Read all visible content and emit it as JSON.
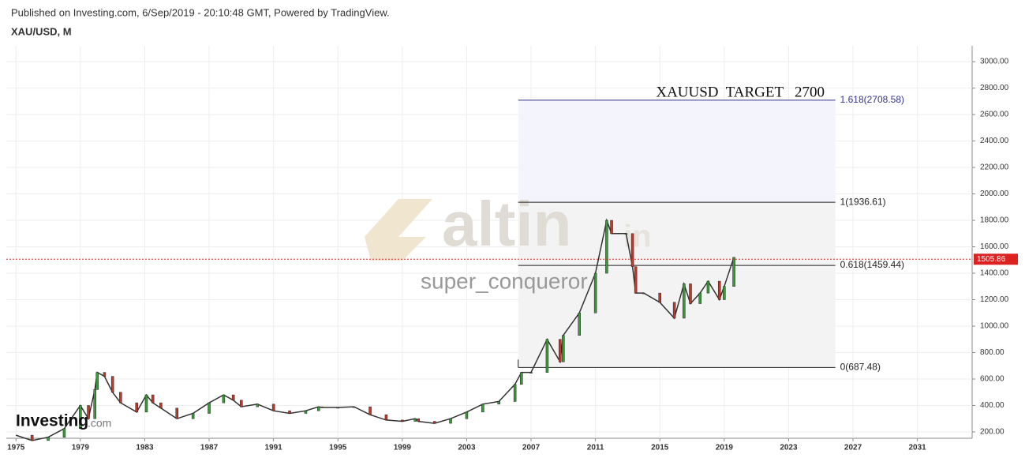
{
  "chart_data": {
    "type": "line",
    "header": "Published on Investing.com, 6/Sep/2019 - 20:10:48 GMT, Powered by TradingView.",
    "title": "XAU/USD, M",
    "annotation": "XAUUSD  TARGET   2700",
    "watermark": "altin",
    "watermark_suffix": "in",
    "watermark_user": "super_conqueror",
    "logo": "Investing",
    "logo_suffix": ".com",
    "color": "#333333",
    "x": [
      1975,
      1976,
      1977,
      1978,
      1979,
      1979.5,
      1979.9,
      1980.05,
      1980.5,
      1981,
      1981.5,
      1982.5,
      1983.1,
      1983.5,
      1984,
      1985,
      1986,
      1987,
      1987.9,
      1988.5,
      1989,
      1990,
      1991,
      1992,
      1993,
      1993.8,
      1994,
      1995,
      1996,
      1997,
      1998,
      1999,
      1999.8,
      2000,
      2001,
      2002,
      2003,
      2004,
      2005,
      2006,
      2006.4,
      2007,
      2008,
      2008.8,
      2009,
      2010,
      2011,
      2011.7,
      2012,
      2012.9,
      2013.3,
      2013.5,
      2014,
      2015,
      2015.9,
      2016.5,
      2016.9,
      2017.5,
      2018,
      2018.7,
      2019,
      2019.6
    ],
    "values": [
      175,
      135,
      160,
      225,
      400,
      300,
      520,
      650,
      620,
      500,
      420,
      350,
      480,
      420,
      380,
      300,
      340,
      420,
      480,
      440,
      390,
      410,
      360,
      340,
      360,
      390,
      385,
      385,
      390,
      330,
      290,
      280,
      300,
      280,
      265,
      300,
      350,
      410,
      430,
      560,
      650,
      650,
      900,
      730,
      930,
      1100,
      1400,
      1800,
      1700,
      1700,
      1450,
      1250,
      1250,
      1180,
      1060,
      1320,
      1170,
      1250,
      1340,
      1200,
      1300,
      1520
    ],
    "last_price": {
      "value": 1505.86,
      "label": "1505.86"
    },
    "fib_levels": [
      {
        "value": 687.48,
        "label": "0(687.48)"
      },
      {
        "value": 1459.44,
        "label": "0.618(1459.44)"
      },
      {
        "value": 1936.61,
        "label": "1(1936.61)"
      },
      {
        "value": 2708.58,
        "label": "1.618(2708.58)"
      }
    ],
    "fib_x": [
      2006.2,
      2025.9
    ],
    "xlim": [
      1974.4,
      2034.4
    ],
    "ylim": [
      152,
      3120
    ],
    "xticks": [
      1975,
      1979,
      1983,
      1987,
      1991,
      1995,
      1999,
      2003,
      2007,
      2011,
      2015,
      2019,
      2023,
      2027,
      2031
    ],
    "yticks": [
      {
        "value": 200,
        "label": "200.00"
      },
      {
        "value": 400,
        "label": "400.00"
      },
      {
        "value": 600,
        "label": "600.00"
      },
      {
        "value": 800,
        "label": "800.00"
      },
      {
        "value": 1000,
        "label": "1000.00"
      },
      {
        "value": 1200,
        "label": "1200.00"
      },
      {
        "value": 1400,
        "label": "1400.00"
      },
      {
        "value": 1600,
        "label": "1600.00"
      },
      {
        "value": 1800,
        "label": "1800.00"
      },
      {
        "value": 2000,
        "label": "2000.00"
      },
      {
        "value": 2200,
        "label": "2200.00"
      },
      {
        "value": 2400,
        "label": "2400.00"
      },
      {
        "value": 2600,
        "label": "2600.00"
      },
      {
        "value": 2800,
        "label": "2800.00"
      },
      {
        "value": 3000,
        "label": "3000.00"
      }
    ],
    "grid": true
  }
}
